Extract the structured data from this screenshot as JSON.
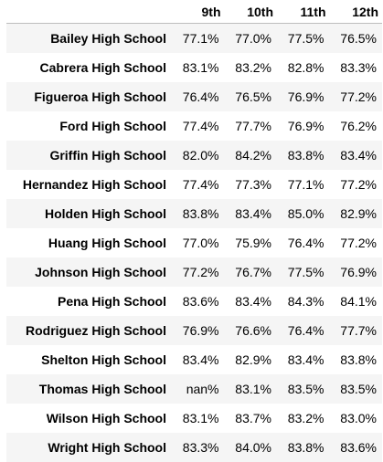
{
  "table": {
    "corner": "",
    "headers": [
      "9th",
      "10th",
      "11th",
      "12th"
    ],
    "rows": [
      {
        "school": "Bailey High School",
        "values": [
          "77.1%",
          "77.0%",
          "77.5%",
          "76.5%"
        ]
      },
      {
        "school": "Cabrera High School",
        "values": [
          "83.1%",
          "83.2%",
          "82.8%",
          "83.3%"
        ]
      },
      {
        "school": "Figueroa High School",
        "values": [
          "76.4%",
          "76.5%",
          "76.9%",
          "77.2%"
        ]
      },
      {
        "school": "Ford High School",
        "values": [
          "77.4%",
          "77.7%",
          "76.9%",
          "76.2%"
        ]
      },
      {
        "school": "Griffin High School",
        "values": [
          "82.0%",
          "84.2%",
          "83.8%",
          "83.4%"
        ]
      },
      {
        "school": "Hernandez High School",
        "values": [
          "77.4%",
          "77.3%",
          "77.1%",
          "77.2%"
        ]
      },
      {
        "school": "Holden High School",
        "values": [
          "83.8%",
          "83.4%",
          "85.0%",
          "82.9%"
        ]
      },
      {
        "school": "Huang High School",
        "values": [
          "77.0%",
          "75.9%",
          "76.4%",
          "77.2%"
        ]
      },
      {
        "school": "Johnson High School",
        "values": [
          "77.2%",
          "76.7%",
          "77.5%",
          "76.9%"
        ]
      },
      {
        "school": "Pena High School",
        "values": [
          "83.6%",
          "83.4%",
          "84.3%",
          "84.1%"
        ]
      },
      {
        "school": "Rodriguez High School",
        "values": [
          "76.9%",
          "76.6%",
          "76.4%",
          "77.7%"
        ]
      },
      {
        "school": "Shelton High School",
        "values": [
          "83.4%",
          "82.9%",
          "83.4%",
          "83.8%"
        ]
      },
      {
        "school": "Thomas High School",
        "values": [
          "nan%",
          "83.1%",
          "83.5%",
          "83.5%"
        ]
      },
      {
        "school": "Wilson High School",
        "values": [
          "83.1%",
          "83.7%",
          "83.2%",
          "83.0%"
        ]
      },
      {
        "school": "Wright High School",
        "values": [
          "83.3%",
          "84.0%",
          "83.8%",
          "83.6%"
        ]
      }
    ]
  }
}
